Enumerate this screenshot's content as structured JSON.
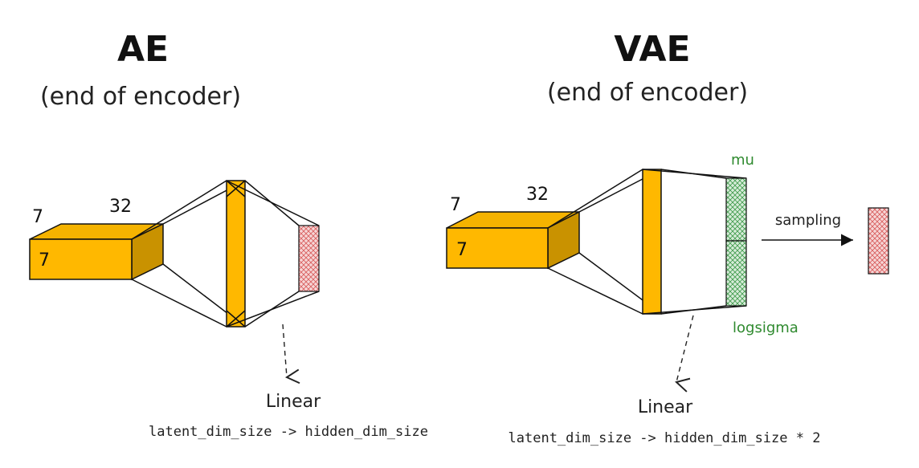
{
  "ae": {
    "title": "AE",
    "subtitle": "(end of encoder)",
    "dim_height": "7",
    "dim_width": "32",
    "dim_depth": "7",
    "linear_label": "Linear",
    "linear_desc": "latent_dim_size -> hidden_dim_size"
  },
  "vae": {
    "title": "VAE",
    "subtitle": "(end of encoder)",
    "dim_height": "7",
    "dim_width": "32",
    "dim_depth": "7",
    "mu_label": "mu",
    "logsigma_label": "logsigma",
    "sampling_label": "sampling",
    "linear_label": "Linear",
    "linear_desc": "latent_dim_size -> hidden_dim_size * 2"
  },
  "colors": {
    "block_front": "#ffb800",
    "block_top": "#f5b300",
    "block_side": "#c99200",
    "latent_red": "#e88080",
    "mu_green": "#6fbf7a",
    "label_green": "#2f8a2f"
  }
}
